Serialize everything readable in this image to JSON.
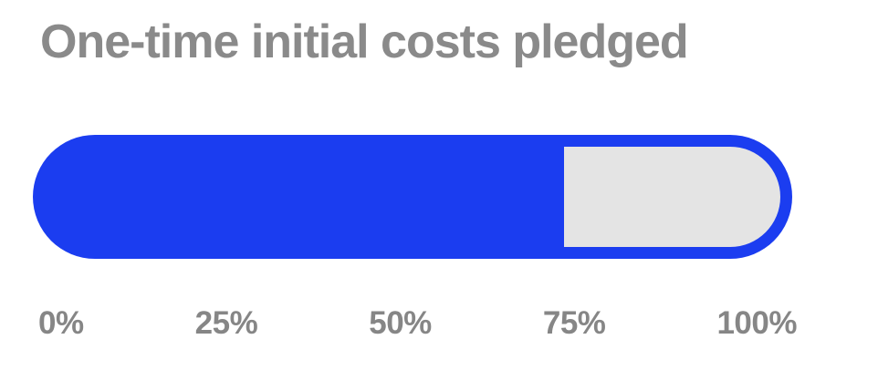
{
  "page": {
    "background": "#ffffff"
  },
  "header": {
    "title": "One-time initial costs pledged",
    "title_color": "#8a8a8a"
  },
  "chart_data": {
    "type": "bar",
    "orientation": "horizontal",
    "title": "One-time initial costs pledged",
    "series": [
      {
        "name": "One-time initial costs pledged",
        "values": [
          70
        ]
      }
    ],
    "value_percent": 70,
    "xlabel": "",
    "ylabel": "",
    "xlim": [
      0,
      100
    ],
    "x_tick_labels": [
      "0%",
      "25%",
      "50%",
      "75%",
      "100%"
    ],
    "grid": false,
    "legend": "none",
    "colors": {
      "fill": "#1b3df0",
      "track": "#e4e4e4",
      "tick_text": "#868686"
    }
  }
}
